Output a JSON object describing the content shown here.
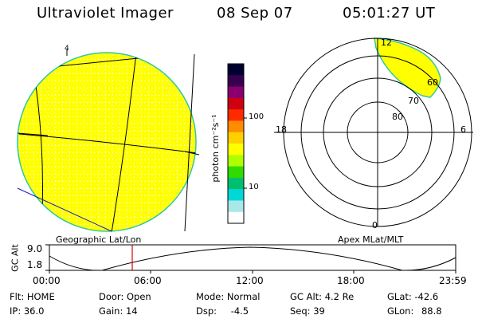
{
  "header": {
    "title": "Ultraviolet Imager",
    "date": "08 Sep 07",
    "time": "05:01:27 UT"
  },
  "left_panel": {
    "label": "Geographic Lat/Lon",
    "meridian_tick": "4"
  },
  "colorbar": {
    "unit_label": "photon cm⁻²s⁻¹",
    "ticks": [
      "100",
      "10"
    ],
    "colors": [
      "#000030",
      "#3a0050",
      "#8a0070",
      "#d00010",
      "#ff2a00",
      "#ff8c00",
      "#ffd000",
      "#ffff00",
      "#b0ff00",
      "#30dc00",
      "#00c070",
      "#00d8d8",
      "#a8e8e8",
      "#ffffff"
    ]
  },
  "right_panel": {
    "label": "Apex MLat/MLT",
    "mlt_labels": {
      "top": "12",
      "bottom": "0",
      "left": "18",
      "right": "6"
    },
    "mlat_labels": [
      "80",
      "70",
      "60"
    ]
  },
  "altitude_plot": {
    "axis_label": "GC Alt",
    "y_ticks": [
      "9.0",
      "1.8"
    ],
    "x_ticks": [
      "00:00",
      "06:00",
      "12:00",
      "18:00",
      "23:59"
    ]
  },
  "info": {
    "row1": [
      {
        "label": "Flt:",
        "value": "HOME"
      },
      {
        "label": "Door:",
        "value": "Open"
      },
      {
        "label": "Mode:",
        "value": "Normal"
      },
      {
        "label": "GC Alt:",
        "value": "4.2 Re"
      },
      {
        "label": "GLat:",
        "value": "-42.6"
      }
    ],
    "row2": [
      {
        "label": "IP:",
        "value": "36.0"
      },
      {
        "label": "Gain:",
        "value": "14"
      },
      {
        "label": "Dsp:",
        "value": "-4.5"
      },
      {
        "label": "Seq:",
        "value": "39"
      },
      {
        "label": "GLon:",
        "value": "88.8"
      }
    ]
  },
  "style": {
    "auroral_fill": "#ffff00",
    "auroral_edge": "#30c8a0",
    "grid_line": "#000000",
    "boundary_line": "#1818c0",
    "current_time_marker": "#e00000"
  }
}
